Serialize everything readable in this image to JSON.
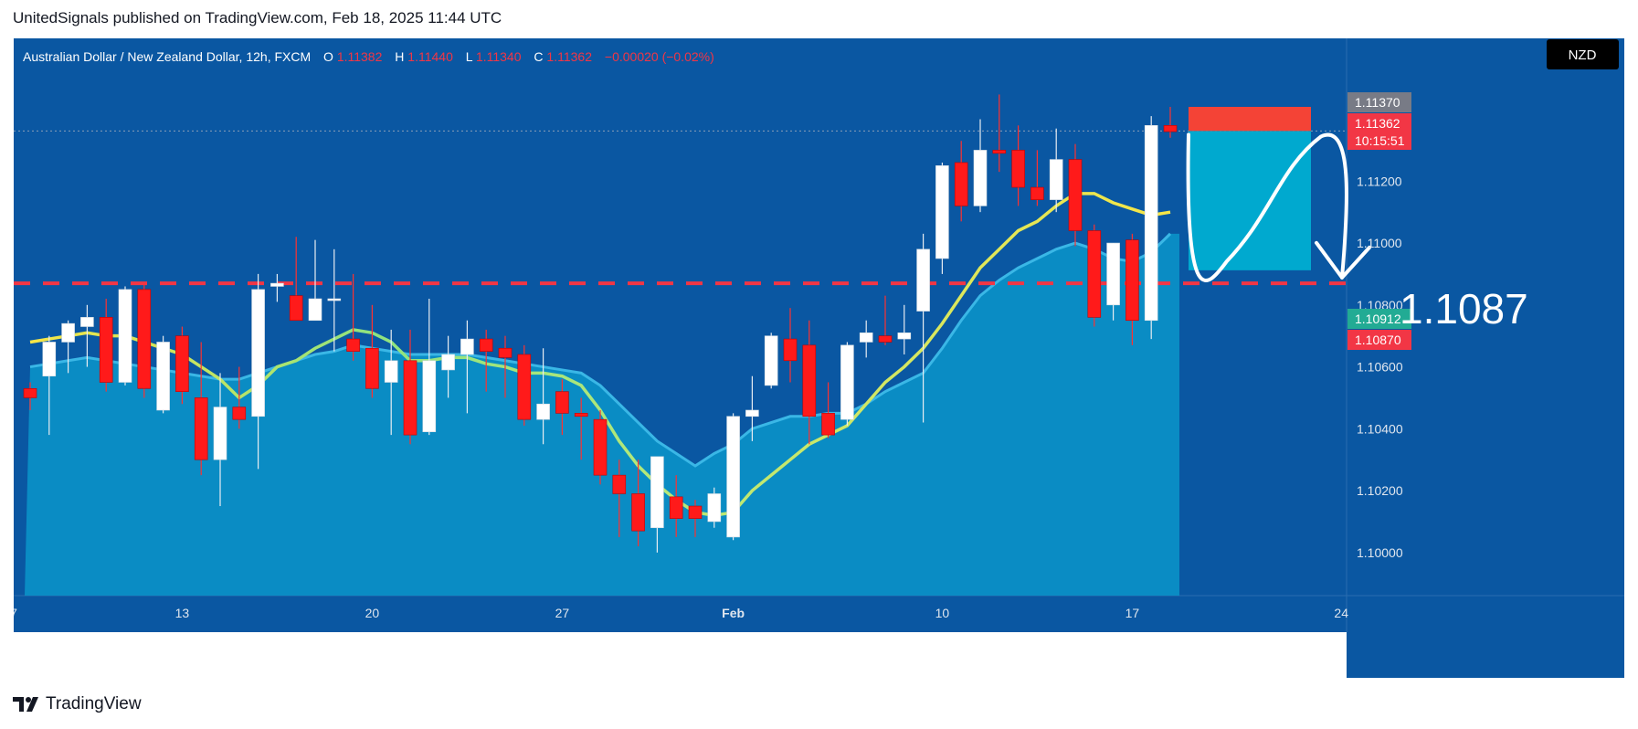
{
  "header": {
    "published": "UnitedSignals published on TradingView.com, Feb 18, 2025 11:44 UTC"
  },
  "footer": {
    "brand": "TradingView"
  },
  "colors": {
    "background": "#0a57a2",
    "up": "#ffffff",
    "down": "#ff1a1a",
    "ema_fast": "#f7e646",
    "ema_slow_fill": "#0b8fc6",
    "target_line": "#f23645",
    "stop_zone": "#f44336",
    "target_zone": "#00a9cf"
  },
  "chart_data": {
    "type": "candlestick",
    "symbol_info": {
      "name": "Australian Dollar / New Zealand Dollar, 12h, FXCM",
      "open_label": "O",
      "open": "1.11382",
      "high_label": "H",
      "high": "1.11440",
      "low_label": "L",
      "low": "1.11340",
      "close_label": "C",
      "close": "1.11362",
      "change": "−0.00020 (−0.02%)"
    },
    "currency_badge": "NZD",
    "y_axis": {
      "min": 1.0997,
      "max": 1.1162,
      "ticks": [
        "1.10000",
        "1.10200",
        "1.10400",
        "1.10600",
        "1.10800",
        "1.11000",
        "1.11200"
      ]
    },
    "x_axis": {
      "ticks": [
        {
          "label": "7",
          "i": 0
        },
        {
          "label": "13",
          "i": 8
        },
        {
          "label": "20",
          "i": 18
        },
        {
          "label": "27",
          "i": 28
        },
        {
          "label": "Feb",
          "i": 37
        },
        {
          "label": "10",
          "i": 48
        },
        {
          "label": "17",
          "i": 58
        },
        {
          "label": "24",
          "i": 69
        }
      ]
    },
    "candles": [
      [
        1.1053,
        1.1055,
        1.1046,
        1.105
      ],
      [
        1.1057,
        1.107,
        1.1038,
        1.1068
      ],
      [
        1.1068,
        1.1075,
        1.1058,
        1.1074
      ],
      [
        1.1073,
        1.108,
        1.106,
        1.1076
      ],
      [
        1.1076,
        1.1082,
        1.1052,
        1.1055
      ],
      [
        1.1055,
        1.1086,
        1.1054,
        1.1085
      ],
      [
        1.1085,
        1.1087,
        1.105,
        1.1053
      ],
      [
        1.1046,
        1.107,
        1.1045,
        1.1068
      ],
      [
        1.107,
        1.1073,
        1.1048,
        1.1052
      ],
      [
        1.105,
        1.1068,
        1.1025,
        1.103
      ],
      [
        1.103,
        1.1058,
        1.1015,
        1.1047
      ],
      [
        1.1047,
        1.106,
        1.104,
        1.1043
      ],
      [
        1.1044,
        1.109,
        1.1027,
        1.1085
      ],
      [
        1.1086,
        1.109,
        1.1081,
        1.1087
      ],
      [
        1.1083,
        1.1102,
        1.1075,
        1.1075
      ],
      [
        1.1075,
        1.1101,
        1.1075,
        1.1082
      ],
      [
        1.1082,
        1.1098,
        1.1065,
        1.1082
      ],
      [
        1.1069,
        1.109,
        1.1062,
        1.1065
      ],
      [
        1.1066,
        1.108,
        1.105,
        1.1053
      ],
      [
        1.1055,
        1.1072,
        1.1038,
        1.1062
      ],
      [
        1.1062,
        1.1072,
        1.1035,
        1.1038
      ],
      [
        1.1039,
        1.1082,
        1.1038,
        1.1062
      ],
      [
        1.1059,
        1.107,
        1.105,
        1.1064
      ],
      [
        1.1064,
        1.1075,
        1.1045,
        1.1069
      ],
      [
        1.1069,
        1.1072,
        1.1052,
        1.1065
      ],
      [
        1.1066,
        1.107,
        1.105,
        1.1063
      ],
      [
        1.1064,
        1.1067,
        1.1041,
        1.1043
      ],
      [
        1.1043,
        1.1066,
        1.1035,
        1.1048
      ],
      [
        1.1052,
        1.1056,
        1.1038,
        1.1045
      ],
      [
        1.1045,
        1.105,
        1.103,
        1.1044
      ],
      [
        1.1043,
        1.1046,
        1.1022,
        1.1025
      ],
      [
        1.1025,
        1.103,
        1.1005,
        1.1019
      ],
      [
        1.1019,
        1.103,
        1.1002,
        1.1007
      ],
      [
        1.1008,
        1.103,
        1.1,
        1.1031
      ],
      [
        1.1018,
        1.1025,
        1.1005,
        1.1011
      ],
      [
        1.1015,
        1.1017,
        1.1005,
        1.1011
      ],
      [
        1.101,
        1.1021,
        1.1008,
        1.1019
      ],
      [
        1.1005,
        1.1045,
        1.1004,
        1.1044
      ],
      [
        1.1044,
        1.1057,
        1.1036,
        1.1046
      ],
      [
        1.1054,
        1.1071,
        1.1053,
        1.107
      ],
      [
        1.1069,
        1.1079,
        1.1055,
        1.1062
      ],
      [
        1.1067,
        1.1075,
        1.1035,
        1.1044
      ],
      [
        1.1045,
        1.1055,
        1.1037,
        1.1038
      ],
      [
        1.1043,
        1.1068,
        1.1041,
        1.1067
      ],
      [
        1.1068,
        1.1075,
        1.1063,
        1.1071
      ],
      [
        1.107,
        1.1083,
        1.1067,
        1.1068
      ],
      [
        1.1069,
        1.108,
        1.1064,
        1.1071
      ],
      [
        1.1078,
        1.1103,
        1.1042,
        1.1098
      ],
      [
        1.1095,
        1.1126,
        1.109,
        1.1125
      ],
      [
        1.1126,
        1.1133,
        1.1107,
        1.1112
      ],
      [
        1.1112,
        1.114,
        1.111,
        1.113
      ],
      [
        1.113,
        1.1148,
        1.1123,
        1.1129
      ],
      [
        1.113,
        1.1138,
        1.1112,
        1.1118
      ],
      [
        1.1118,
        1.113,
        1.1112,
        1.1114
      ],
      [
        1.1114,
        1.1137,
        1.111,
        1.1127
      ],
      [
        1.1127,
        1.1132,
        1.1099,
        1.1104
      ],
      [
        1.1104,
        1.1106,
        1.1073,
        1.1076
      ],
      [
        1.108,
        1.11,
        1.1075,
        1.11
      ],
      [
        1.1101,
        1.1103,
        1.1067,
        1.1075
      ],
      [
        1.1075,
        1.1141,
        1.1069,
        1.1138
      ],
      [
        1.1138,
        1.1144,
        1.1134,
        1.1136
      ]
    ],
    "ema_fast": [
      1.1068,
      1.1069,
      1.107,
      1.1071,
      1.107,
      1.107,
      1.1068,
      1.1066,
      1.1064,
      1.106,
      1.1056,
      1.105,
      1.1054,
      1.106,
      1.1062,
      1.1066,
      1.1069,
      1.1072,
      1.1071,
      1.1068,
      1.1062,
      1.1062,
      1.1063,
      1.1063,
      1.1061,
      1.106,
      1.1058,
      1.1058,
      1.1057,
      1.1054,
      1.1046,
      1.1036,
      1.1028,
      1.1022,
      1.1017,
      1.1013,
      1.1012,
      1.1013,
      1.102,
      1.1025,
      1.103,
      1.1035,
      1.1038,
      1.1041,
      1.1048,
      1.1055,
      1.106,
      1.1066,
      1.1074,
      1.1083,
      1.1092,
      1.1098,
      1.1104,
      1.1107,
      1.1112,
      1.1116,
      1.1116,
      1.1113,
      1.1111,
      1.1109,
      1.111
    ],
    "ema_slow": [
      1.106,
      1.1061,
      1.1062,
      1.1063,
      1.1062,
      1.1061,
      1.106,
      1.1059,
      1.1058,
      1.1057,
      1.1056,
      1.1056,
      1.1058,
      1.106,
      1.1062,
      1.1064,
      1.1065,
      1.1067,
      1.1066,
      1.1065,
      1.1064,
      1.1064,
      1.1064,
      1.1064,
      1.1063,
      1.1062,
      1.1061,
      1.106,
      1.1059,
      1.1058,
      1.1054,
      1.1048,
      1.1042,
      1.1036,
      1.1032,
      1.1028,
      1.1032,
      1.1035,
      1.104,
      1.1042,
      1.1044,
      1.1044,
      1.1045,
      1.1045,
      1.1048,
      1.1052,
      1.1055,
      1.1058,
      1.1066,
      1.1075,
      1.1083,
      1.1088,
      1.1092,
      1.1095,
      1.1098,
      1.11,
      1.1098,
      1.1095,
      1.1094,
      1.1097,
      1.1103
    ],
    "price_labels": [
      {
        "value": 1.1137,
        "text": "1.11370",
        "color": "#787b86"
      },
      {
        "value": 1.11362,
        "text": "1.11362",
        "sub": "10:15:51",
        "color": "#f23645"
      },
      {
        "value": 1.10912,
        "text": "1.10912",
        "color": "#22ab94"
      },
      {
        "value": 1.1087,
        "text": "1.10870",
        "color": "#f23645"
      }
    ],
    "target_level": 1.1087,
    "target_annotation": "1.1087",
    "position": {
      "stop": 1.1144,
      "entry": 1.11362,
      "target": 1.10912
    }
  }
}
